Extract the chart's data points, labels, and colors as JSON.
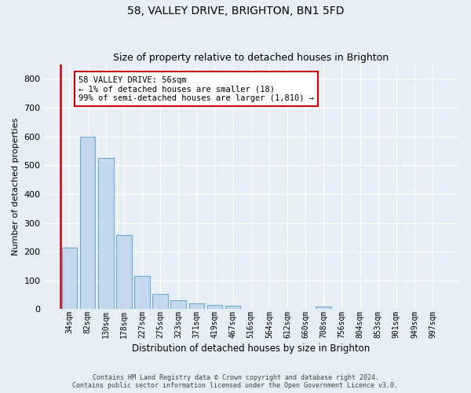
{
  "title1": "58, VALLEY DRIVE, BRIGHTON, BN1 5FD",
  "title2": "Size of property relative to detached houses in Brighton",
  "xlabel": "Distribution of detached houses by size in Brighton",
  "ylabel": "Number of detached properties",
  "categories": [
    "34sqm",
    "82sqm",
    "130sqm",
    "178sqm",
    "227sqm",
    "275sqm",
    "323sqm",
    "371sqm",
    "419sqm",
    "467sqm",
    "516sqm",
    "564sqm",
    "612sqm",
    "660sqm",
    "708sqm",
    "756sqm",
    "804sqm",
    "853sqm",
    "901sqm",
    "949sqm",
    "997sqm"
  ],
  "values": [
    215,
    598,
    525,
    257,
    117,
    52,
    32,
    20,
    16,
    11,
    2,
    2,
    1,
    0,
    10,
    0,
    0,
    0,
    0,
    0,
    0
  ],
  "bar_color": "#c5d8ee",
  "bar_edge_color": "#6aaad4",
  "marker_color": "#cc0000",
  "annotation_text": "58 VALLEY DRIVE: 56sqm\n← 1% of detached houses are smaller (18)\n99% of semi-detached houses are larger (1,810) →",
  "ylim": [
    0,
    850
  ],
  "yticks": [
    0,
    100,
    200,
    300,
    400,
    500,
    600,
    700,
    800
  ],
  "bg_color": "#e8eef5",
  "plot_bg_color": "#e8eef5",
  "grid_color": "#ffffff",
  "footer1": "Contains HM Land Registry data © Crown copyright and database right 2024.",
  "footer2": "Contains public sector information licensed under the Open Government Licence v3.0.",
  "title_fontsize": 10,
  "subtitle_fontsize": 9,
  "ylabel_fontsize": 8,
  "xlabel_fontsize": 8.5,
  "tick_fontsize": 7,
  "footer_fontsize": 6,
  "annot_fontsize": 7.5
}
